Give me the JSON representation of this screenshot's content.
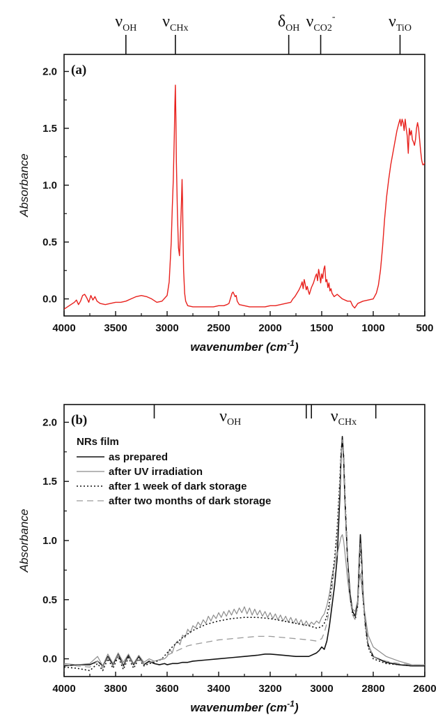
{
  "chart_data": [
    {
      "type": "line",
      "panel_label": "(a)",
      "xlabel": "wavenumber (cm",
      "xlabel_sup": "-1",
      "xlabel_tail": ")",
      "ylabel": "Absorbance",
      "xlim": [
        4000,
        500
      ],
      "ylim": [
        -0.15,
        2.15
      ],
      "xticks": [
        4000,
        3500,
        3000,
        2500,
        2000,
        1500,
        1000,
        500
      ],
      "yticks": [
        0.0,
        0.5,
        1.0,
        1.5,
        2.0
      ],
      "ytick_labels": [
        "0.0",
        "0.5",
        "1.0",
        "1.5",
        "2.0"
      ],
      "band_markers": [
        {
          "position": 3400,
          "symbol": "ν",
          "sub": "OH",
          "sup": ""
        },
        {
          "position": 2920,
          "symbol": "ν",
          "sub": "CHx",
          "sup": ""
        },
        {
          "position": 1820,
          "symbol": "δ",
          "sub": "OH",
          "sup": ""
        },
        {
          "position": 1510,
          "symbol": "ν",
          "sub": "CO2",
          "sup": "-"
        },
        {
          "position": 740,
          "symbol": "ν",
          "sub": "TiO",
          "sup": ""
        }
      ],
      "series": [
        {
          "color": "#e8201c",
          "style": "solid",
          "x": [
            4000,
            3950,
            3900,
            3880,
            3860,
            3840,
            3820,
            3800,
            3780,
            3760,
            3740,
            3720,
            3700,
            3680,
            3650,
            3600,
            3550,
            3500,
            3450,
            3400,
            3350,
            3300,
            3250,
            3200,
            3150,
            3100,
            3050,
            3000,
            2980,
            2960,
            2950,
            2940,
            2930,
            2925,
            2920,
            2915,
            2910,
            2900,
            2890,
            2880,
            2870,
            2860,
            2855,
            2850,
            2845,
            2840,
            2830,
            2820,
            2800,
            2750,
            2700,
            2650,
            2600,
            2550,
            2500,
            2450,
            2420,
            2400,
            2380,
            2370,
            2360,
            2350,
            2340,
            2330,
            2320,
            2300,
            2250,
            2200,
            2150,
            2100,
            2050,
            2000,
            1950,
            1900,
            1850,
            1800,
            1780,
            1760,
            1740,
            1720,
            1700,
            1690,
            1680,
            1670,
            1660,
            1650,
            1640,
            1630,
            1620,
            1600,
            1580,
            1560,
            1550,
            1540,
            1530,
            1520,
            1510,
            1500,
            1490,
            1480,
            1470,
            1460,
            1450,
            1440,
            1430,
            1420,
            1410,
            1400,
            1380,
            1350,
            1300,
            1250,
            1220,
            1200,
            1180,
            1150,
            1100,
            1050,
            1000,
            970,
            950,
            930,
            910,
            890,
            870,
            850,
            830,
            810,
            790,
            770,
            750,
            740,
            730,
            720,
            710,
            700,
            690,
            680,
            670,
            660,
            650,
            640,
            630,
            620,
            610,
            600,
            590,
            580,
            570,
            560,
            550,
            540,
            530,
            520,
            510,
            500
          ],
          "y": [
            -0.09,
            -0.06,
            -0.03,
            -0.01,
            -0.05,
            -0.02,
            0.03,
            0.04,
            0.01,
            -0.03,
            0.03,
            -0.01,
            0.02,
            -0.02,
            -0.04,
            -0.05,
            -0.04,
            -0.03,
            -0.03,
            -0.02,
            0.0,
            0.02,
            0.03,
            0.02,
            0.0,
            -0.03,
            -0.02,
            0.03,
            0.15,
            0.5,
            0.8,
            1.05,
            1.45,
            1.7,
            1.88,
            1.6,
            1.2,
            0.75,
            0.45,
            0.38,
            0.6,
            0.88,
            1.05,
            0.85,
            0.5,
            0.25,
            0.05,
            -0.02,
            -0.06,
            -0.07,
            -0.07,
            -0.07,
            -0.07,
            -0.07,
            -0.06,
            -0.06,
            -0.05,
            -0.04,
            0.02,
            0.05,
            0.06,
            0.04,
            0.02,
            0.03,
            -0.02,
            -0.05,
            -0.06,
            -0.07,
            -0.07,
            -0.07,
            -0.07,
            -0.06,
            -0.06,
            -0.05,
            -0.04,
            -0.03,
            0.0,
            0.02,
            0.05,
            0.08,
            0.12,
            0.15,
            0.09,
            0.17,
            0.13,
            0.08,
            0.11,
            0.07,
            0.04,
            0.1,
            0.14,
            0.2,
            0.22,
            0.16,
            0.26,
            0.21,
            0.14,
            0.22,
            0.18,
            0.26,
            0.29,
            0.15,
            0.17,
            0.1,
            0.14,
            0.07,
            0.09,
            0.05,
            0.02,
            0.04,
            0.0,
            -0.02,
            -0.02,
            -0.06,
            -0.08,
            -0.04,
            -0.02,
            -0.01,
            0.0,
            0.05,
            0.12,
            0.25,
            0.45,
            0.7,
            0.9,
            1.05,
            1.18,
            1.28,
            1.38,
            1.48,
            1.55,
            1.58,
            1.52,
            1.58,
            1.55,
            1.48,
            1.58,
            1.5,
            1.43,
            1.28,
            1.5,
            1.44,
            1.48,
            1.4,
            1.38,
            1.35,
            1.4,
            1.5,
            1.55,
            1.5,
            1.4,
            1.3,
            1.22,
            1.18,
            1.18,
            1.2
          ]
        }
      ]
    },
    {
      "type": "line",
      "panel_label": "(b)",
      "xlabel": "wavenumber (cm",
      "xlabel_sup": "-1",
      "xlabel_tail": ")",
      "ylabel": "Absorbance",
      "xlim": [
        4000,
        2600
      ],
      "ylim": [
        -0.15,
        2.15
      ],
      "xticks": [
        4000,
        3800,
        3600,
        3400,
        3200,
        3000,
        2800,
        2600
      ],
      "yticks": [
        0.0,
        0.5,
        1.0,
        1.5,
        2.0
      ],
      "ytick_labels": [
        "0.0",
        "0.5",
        "1.0",
        "1.5",
        "2.0"
      ],
      "band_ranges": [
        {
          "from": 3650,
          "to": 3060,
          "symbol": "ν",
          "sub": "OH"
        },
        {
          "from": 3040,
          "to": 2790,
          "symbol": "ν",
          "sub": "CHx"
        }
      ],
      "legend": {
        "title": "NRs film",
        "placement": "top-left"
      },
      "series": [
        {
          "name": "as prepared",
          "color": "#111111",
          "style": "solid",
          "width": 1.6,
          "x": [
            4000,
            3950,
            3900,
            3870,
            3850,
            3830,
            3810,
            3790,
            3770,
            3750,
            3730,
            3710,
            3690,
            3670,
            3650,
            3630,
            3610,
            3600,
            3580,
            3560,
            3540,
            3520,
            3500,
            3450,
            3400,
            3350,
            3300,
            3250,
            3220,
            3200,
            3150,
            3100,
            3050,
            3020,
            3010,
            3000,
            2990,
            2980,
            2970,
            2960,
            2950,
            2940,
            2930,
            2925,
            2920,
            2915,
            2910,
            2900,
            2890,
            2880,
            2870,
            2860,
            2855,
            2850,
            2845,
            2840,
            2830,
            2820,
            2800,
            2750,
            2700,
            2650,
            2600
          ],
          "y": [
            -0.06,
            -0.05,
            -0.05,
            -0.02,
            -0.06,
            0.02,
            -0.05,
            0.04,
            -0.06,
            0.03,
            -0.05,
            0.02,
            -0.05,
            -0.02,
            -0.04,
            -0.05,
            -0.04,
            -0.05,
            -0.04,
            -0.04,
            -0.03,
            -0.03,
            -0.02,
            -0.01,
            0.0,
            0.01,
            0.02,
            0.03,
            0.04,
            0.04,
            0.03,
            0.02,
            0.02,
            0.05,
            0.07,
            0.1,
            0.08,
            0.15,
            0.28,
            0.45,
            0.62,
            0.85,
            1.35,
            1.7,
            1.88,
            1.7,
            1.35,
            0.85,
            0.55,
            0.4,
            0.36,
            0.48,
            0.78,
            1.05,
            0.85,
            0.55,
            0.28,
            0.12,
            0.02,
            -0.03,
            -0.05,
            -0.06,
            -0.06
          ]
        },
        {
          "name": "after UV irradiation",
          "color": "#8c8c8c",
          "style": "solid",
          "width": 1.2,
          "x": [
            4000,
            3950,
            3900,
            3870,
            3850,
            3830,
            3810,
            3790,
            3770,
            3750,
            3730,
            3710,
            3690,
            3670,
            3650,
            3630,
            3610,
            3600,
            3590,
            3580,
            3570,
            3560,
            3550,
            3540,
            3530,
            3520,
            3510,
            3500,
            3490,
            3480,
            3470,
            3460,
            3450,
            3440,
            3430,
            3420,
            3410,
            3400,
            3390,
            3380,
            3370,
            3360,
            3350,
            3340,
            3330,
            3320,
            3310,
            3300,
            3290,
            3280,
            3270,
            3260,
            3250,
            3240,
            3230,
            3220,
            3210,
            3200,
            3190,
            3180,
            3170,
            3160,
            3150,
            3140,
            3130,
            3120,
            3110,
            3100,
            3090,
            3080,
            3070,
            3060,
            3050,
            3040,
            3030,
            3020,
            3010,
            3000,
            2990,
            2980,
            2970,
            2960,
            2950,
            2940,
            2930,
            2925,
            2920,
            2915,
            2910,
            2900,
            2890,
            2880,
            2870,
            2860,
            2855,
            2850,
            2845,
            2840,
            2830,
            2820,
            2800,
            2750,
            2700,
            2650,
            2600
          ],
          "y": [
            -0.04,
            -0.05,
            -0.04,
            0.02,
            -0.06,
            0.04,
            -0.04,
            0.05,
            -0.03,
            0.04,
            -0.04,
            0.03,
            -0.03,
            0.0,
            -0.02,
            -0.01,
            0.0,
            0.02,
            0.08,
            0.05,
            0.12,
            0.15,
            0.12,
            0.2,
            0.18,
            0.25,
            0.22,
            0.28,
            0.26,
            0.31,
            0.28,
            0.33,
            0.3,
            0.36,
            0.32,
            0.37,
            0.34,
            0.39,
            0.35,
            0.4,
            0.36,
            0.41,
            0.37,
            0.42,
            0.38,
            0.43,
            0.39,
            0.44,
            0.38,
            0.43,
            0.37,
            0.42,
            0.37,
            0.41,
            0.36,
            0.4,
            0.35,
            0.39,
            0.34,
            0.38,
            0.33,
            0.37,
            0.32,
            0.36,
            0.31,
            0.35,
            0.3,
            0.34,
            0.29,
            0.33,
            0.28,
            0.32,
            0.28,
            0.31,
            0.29,
            0.32,
            0.3,
            0.35,
            0.38,
            0.45,
            0.55,
            0.7,
            0.8,
            0.88,
            0.98,
            1.03,
            1.05,
            1.0,
            0.9,
            0.68,
            0.5,
            0.42,
            0.4,
            0.5,
            0.65,
            0.72,
            0.62,
            0.5,
            0.35,
            0.2,
            0.1,
            0.02,
            -0.02,
            -0.05,
            -0.05
          ]
        },
        {
          "name": "after 1 week of dark storage",
          "color": "#111111",
          "style": "dotted",
          "width": 1.6,
          "x": [
            4000,
            3950,
            3900,
            3870,
            3850,
            3830,
            3810,
            3790,
            3770,
            3750,
            3730,
            3710,
            3690,
            3670,
            3650,
            3620,
            3600,
            3580,
            3560,
            3540,
            3520,
            3500,
            3450,
            3400,
            3350,
            3300,
            3250,
            3200,
            3150,
            3100,
            3050,
            3020,
            3000,
            2990,
            2980,
            2970,
            2960,
            2950,
            2940,
            2930,
            2925,
            2920,
            2915,
            2910,
            2900,
            2890,
            2880,
            2870,
            2860,
            2855,
            2850,
            2845,
            2840,
            2830,
            2820,
            2800,
            2750,
            2700,
            2650,
            2600
          ],
          "y": [
            -0.07,
            -0.08,
            -0.1,
            -0.04,
            -0.1,
            0.0,
            -0.08,
            0.02,
            -0.09,
            0.01,
            -0.08,
            0.0,
            -0.06,
            -0.04,
            -0.03,
            0.0,
            0.05,
            0.1,
            0.14,
            0.18,
            0.21,
            0.24,
            0.29,
            0.32,
            0.34,
            0.35,
            0.35,
            0.34,
            0.32,
            0.3,
            0.28,
            0.26,
            0.27,
            0.3,
            0.36,
            0.48,
            0.66,
            0.85,
            1.1,
            1.5,
            1.75,
            1.86,
            1.72,
            1.4,
            0.85,
            0.52,
            0.38,
            0.33,
            0.45,
            0.72,
            0.98,
            0.8,
            0.52,
            0.26,
            0.1,
            0.0,
            -0.04,
            -0.05,
            -0.06,
            -0.06
          ]
        },
        {
          "name": "after two months of dark storage",
          "color": "#9a9a9a",
          "style": "dashed",
          "width": 1.3,
          "x": [
            4000,
            3950,
            3900,
            3870,
            3850,
            3830,
            3810,
            3790,
            3770,
            3750,
            3730,
            3710,
            3690,
            3670,
            3650,
            3620,
            3600,
            3580,
            3560,
            3540,
            3520,
            3500,
            3450,
            3400,
            3350,
            3300,
            3250,
            3200,
            3150,
            3100,
            3050,
            3020,
            3000,
            2990,
            2980,
            2970,
            2960,
            2950,
            2940,
            2930,
            2925,
            2920,
            2915,
            2910,
            2900,
            2890,
            2880,
            2870,
            2860,
            2855,
            2850,
            2845,
            2840,
            2830,
            2820,
            2800,
            2750,
            2700,
            2650,
            2600
          ],
          "y": [
            -0.05,
            -0.06,
            -0.07,
            -0.02,
            -0.08,
            0.01,
            -0.06,
            0.03,
            -0.07,
            0.02,
            -0.06,
            0.01,
            -0.05,
            -0.03,
            -0.02,
            0.0,
            0.03,
            0.05,
            0.07,
            0.09,
            0.11,
            0.12,
            0.14,
            0.16,
            0.17,
            0.18,
            0.19,
            0.19,
            0.18,
            0.17,
            0.16,
            0.15,
            0.17,
            0.22,
            0.3,
            0.42,
            0.58,
            0.78,
            1.02,
            1.45,
            1.72,
            1.85,
            1.7,
            1.38,
            0.82,
            0.5,
            0.37,
            0.33,
            0.45,
            0.72,
            0.98,
            0.8,
            0.52,
            0.27,
            0.12,
            0.02,
            -0.02,
            -0.04,
            -0.05,
            -0.05
          ]
        }
      ]
    }
  ]
}
